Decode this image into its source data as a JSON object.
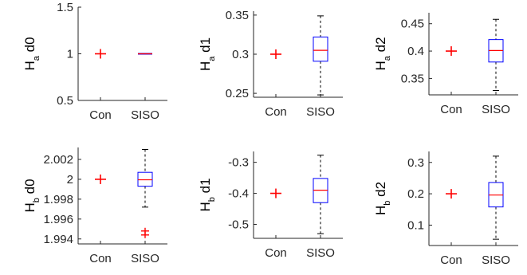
{
  "colors": {
    "con_marker": "#ff0000",
    "box": "#0000ff",
    "median": "#ff0000",
    "whisker": "#000000",
    "outlier": "#ff0000",
    "axis": "#262626"
  },
  "chart_data": [
    {
      "type": "box",
      "ylabel": {
        "main": "H",
        "sub": "a",
        "suffix": " d0"
      },
      "categories": [
        "Con",
        "SISO"
      ],
      "ylim": [
        0.5,
        1.5
      ],
      "yticks": [
        0.5,
        1,
        1.5
      ],
      "yticklabels": [
        "0.5",
        "1",
        "1.5"
      ],
      "con": {
        "median": 1
      },
      "siso": {
        "min": 1,
        "q1": 1,
        "median": 1,
        "q3": 1,
        "max": 1,
        "outliers": []
      }
    },
    {
      "type": "box",
      "ylabel": {
        "main": "H",
        "sub": "a",
        "suffix": " d1"
      },
      "categories": [
        "Con",
        "SISO"
      ],
      "ylim": [
        0.245,
        0.355
      ],
      "yticks": [
        0.25,
        0.3,
        0.35
      ],
      "yticklabels": [
        "0.25",
        "0.3",
        "0.35"
      ],
      "con": {
        "median": 0.3
      },
      "siso": {
        "min": 0.248,
        "q1": 0.291,
        "median": 0.305,
        "q3": 0.322,
        "max": 0.349,
        "outliers": []
      }
    },
    {
      "type": "box",
      "ylabel": {
        "main": "H",
        "sub": "a",
        "suffix": " d2"
      },
      "categories": [
        "Con",
        "SISO"
      ],
      "ylim": [
        0.32,
        0.47
      ],
      "yticks": [
        0.35,
        0.4,
        0.45
      ],
      "yticklabels": [
        "0.35",
        "0.4",
        "0.45"
      ],
      "con": {
        "median": 0.4
      },
      "siso": {
        "min": 0.328,
        "q1": 0.38,
        "median": 0.401,
        "q3": 0.421,
        "max": 0.458,
        "outliers": []
      }
    },
    {
      "type": "box",
      "ylabel": {
        "main": "H",
        "sub": "b",
        "suffix": " d0"
      },
      "categories": [
        "Con",
        "SISO"
      ],
      "ylim": [
        1.9935,
        2.0032
      ],
      "yticks": [
        1.994,
        1.996,
        1.998,
        2,
        2.002
      ],
      "yticklabels": [
        "1.994",
        "1.996",
        "1.998",
        "2",
        "2.002"
      ],
      "con": {
        "median": 2
      },
      "siso": {
        "min": 1.9972,
        "q1": 1.9993,
        "median": 1.99995,
        "q3": 2.0007,
        "max": 2.003,
        "outliers": [
          1.9948,
          1.9944
        ]
      }
    },
    {
      "type": "box",
      "ylabel": {
        "main": "H",
        "sub": "b",
        "suffix": " d1"
      },
      "categories": [
        "Con",
        "SISO"
      ],
      "ylim": [
        -0.545,
        -0.265
      ],
      "yticks": [
        -0.5,
        -0.4,
        -0.3
      ],
      "yticklabels": [
        "-0.5",
        "-0.4",
        "-0.3"
      ],
      "con": {
        "median": -0.4
      },
      "siso": {
        "min": -0.53,
        "q1": -0.43,
        "median": -0.39,
        "q3": -0.352,
        "max": -0.277,
        "outliers": []
      }
    },
    {
      "type": "box",
      "ylabel": {
        "main": "H",
        "sub": "b",
        "suffix": " d2"
      },
      "categories": [
        "Con",
        "SISO"
      ],
      "ylim": [
        0.035,
        0.335
      ],
      "yticks": [
        0.1,
        0.2,
        0.3
      ],
      "yticklabels": [
        "0.1",
        "0.2",
        "0.3"
      ],
      "con": {
        "median": 0.2
      },
      "siso": {
        "min": 0.055,
        "q1": 0.158,
        "median": 0.196,
        "q3": 0.236,
        "max": 0.32,
        "outliers": []
      }
    }
  ]
}
